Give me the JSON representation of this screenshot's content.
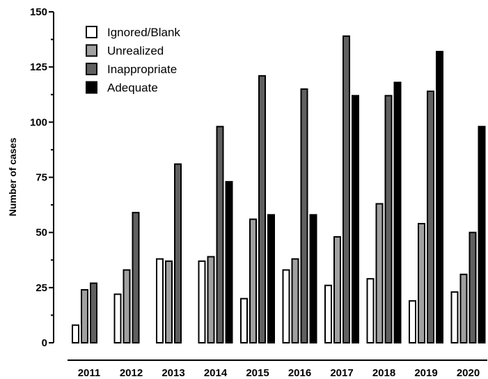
{
  "chart_data": {
    "type": "bar",
    "title": "",
    "xlabel": "",
    "ylabel": "Number of cases",
    "ylim": [
      0,
      150
    ],
    "yticks": [
      0,
      25,
      50,
      75,
      100,
      125,
      150
    ],
    "categories": [
      "2011",
      "2012",
      "2013",
      "2014",
      "2015",
      "2016",
      "2017",
      "2018",
      "2019",
      "2020"
    ],
    "series": [
      {
        "name": "Ignored/Blank",
        "color": "#ffffff",
        "values": [
          8,
          22,
          38,
          37,
          20,
          33,
          26,
          29,
          19,
          23
        ]
      },
      {
        "name": "Unrealized",
        "color": "#a0a0a0",
        "values": [
          24,
          33,
          37,
          39,
          56,
          38,
          48,
          63,
          54,
          31
        ]
      },
      {
        "name": "Inappropriate",
        "color": "#606060",
        "values": [
          27,
          59,
          81,
          98,
          121,
          115,
          139,
          112,
          114,
          50
        ]
      },
      {
        "name": "Adequate",
        "color": "#000000",
        "values": [
          0,
          0,
          0,
          73,
          58,
          58,
          112,
          118,
          132,
          98
        ]
      }
    ],
    "legend_position": "top-left",
    "grid": false
  }
}
